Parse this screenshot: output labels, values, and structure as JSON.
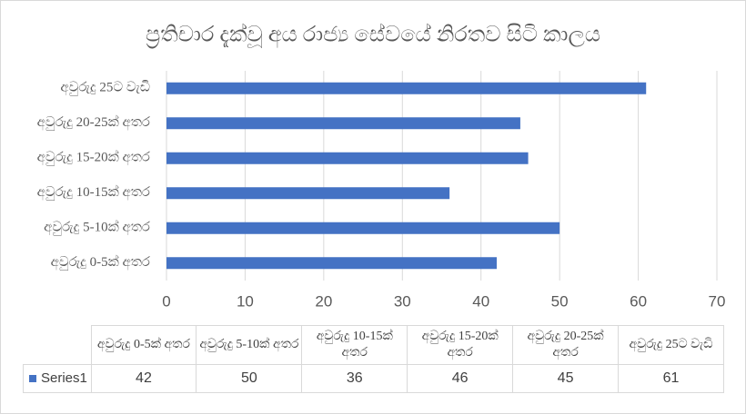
{
  "chart_data": {
    "type": "bar",
    "orientation": "horizontal",
    "title": "ප්‍රතිචාර දැක්වූ අය රාජ්‍ය සේවයේ නිරතව සිටි කාලය",
    "categories": [
      "අවුරුදු 0-5ක් අතර",
      "අවුරුදු 5-10ක් අතර",
      "අවුරුදු 10-15ක් අතර",
      "අවුරුදු 15-20ක් අතර",
      "අවුරුදු 20-25ක් අතර",
      "අවුරුදු 25ට වැඩි"
    ],
    "series": [
      {
        "name": "Series1",
        "color": "#4472c4",
        "values": [
          42,
          50,
          36,
          46,
          45,
          61
        ]
      }
    ],
    "xlim": [
      0,
      70
    ],
    "xticks": [
      0,
      10,
      20,
      30,
      40,
      50,
      60,
      70
    ],
    "grid": true
  }
}
